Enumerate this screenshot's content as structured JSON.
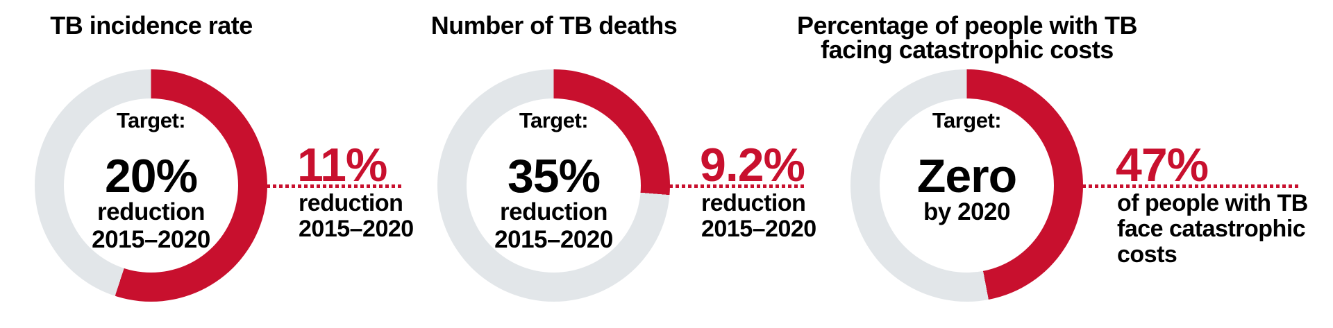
{
  "theme": {
    "background": "#ffffff",
    "accent_red": "#C8102E",
    "ring_gray": "#E2E6E9",
    "text_black": "#000000"
  },
  "panels": [
    {
      "id": "tb-incidence-rate",
      "heading_lines": [
        "TB incidence rate"
      ],
      "donut": {
        "fill_percent": 55,
        "target_label": "Target:",
        "target_value": "20%",
        "target_lines": [
          "reduction",
          "2015–2020"
        ]
      },
      "result": {
        "value": "11%",
        "lines": [
          "reduction",
          "2015–2020"
        ]
      }
    },
    {
      "id": "tb-deaths",
      "heading_lines": [
        "Number of TB deaths"
      ],
      "donut": {
        "fill_percent": 26.3,
        "target_label": "Target:",
        "target_value": "35%",
        "target_lines": [
          "reduction",
          "2015–2020"
        ]
      },
      "result": {
        "value": "9.2%",
        "lines": [
          "reduction",
          "2015–2020"
        ]
      }
    },
    {
      "id": "catastrophic-costs",
      "heading_lines": [
        "Percentage of people with TB",
        "facing catastrophic costs"
      ],
      "donut": {
        "fill_percent": 47,
        "target_label": "Target:",
        "target_value": "Zero",
        "target_lines": [
          "by 2020"
        ]
      },
      "result": {
        "value": "47%",
        "lines": [
          "of people with TB",
          "face catastrophic",
          "costs"
        ]
      }
    }
  ],
  "chart_data": [
    {
      "type": "pie",
      "subtype": "donut",
      "title": "TB incidence rate",
      "slices": [
        {
          "label": "progress achieved toward target",
          "value": 55,
          "color": "#C8102E"
        },
        {
          "label": "remaining to target",
          "value": 45,
          "color": "#E2E6E9"
        }
      ],
      "center_text": "Target: 20% reduction 2015–2020",
      "annotation": "11% reduction 2015–2020",
      "target_percent": 20,
      "achieved_percent": 11,
      "start_angle_deg": 0,
      "direction": "clockwise",
      "legend": "none"
    },
    {
      "type": "pie",
      "subtype": "donut",
      "title": "Number of TB deaths",
      "slices": [
        {
          "label": "progress achieved toward target",
          "value": 26.3,
          "color": "#C8102E"
        },
        {
          "label": "remaining to target",
          "value": 73.7,
          "color": "#E2E6E9"
        }
      ],
      "center_text": "Target: 35% reduction 2015–2020",
      "annotation": "9.2% reduction 2015–2020",
      "target_percent": 35,
      "achieved_percent": 9.2,
      "start_angle_deg": 0,
      "direction": "clockwise",
      "legend": "none"
    },
    {
      "type": "pie",
      "subtype": "donut",
      "title": "Percentage of people with TB facing catastrophic costs",
      "slices": [
        {
          "label": "people with TB facing catastrophic costs",
          "value": 47,
          "color": "#C8102E"
        },
        {
          "label": "not facing catastrophic costs",
          "value": 53,
          "color": "#E2E6E9"
        }
      ],
      "center_text": "Target: Zero by 2020",
      "annotation": "47% of people with TB face catastrophic costs",
      "target_percent": 0,
      "achieved_percent": 47,
      "start_angle_deg": 0,
      "direction": "clockwise",
      "legend": "none"
    }
  ]
}
